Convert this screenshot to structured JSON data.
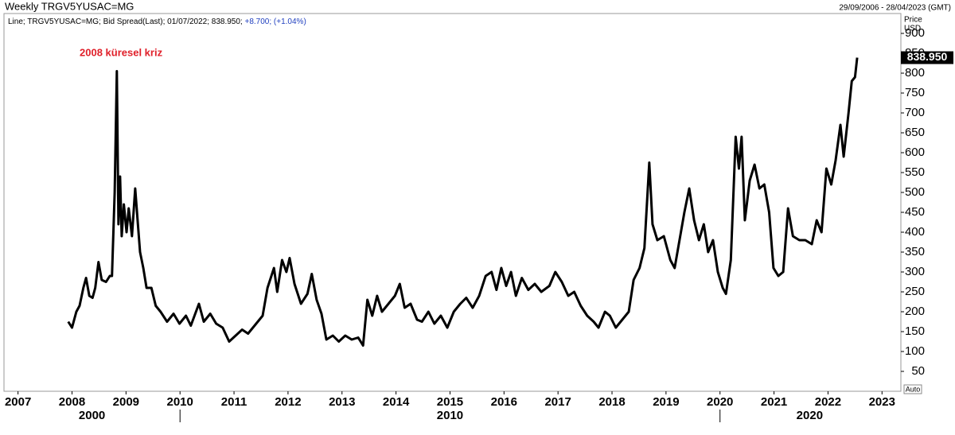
{
  "chart_data": {
    "type": "line",
    "title": "Weekly TRGV5YUSAC=MG",
    "date_range": "29/09/2006 - 28/04/2023 (GMT)",
    "legend_text": "Line; TRGV5YUSAC=MG; Bid Spread(Last); 01/07/2022; 838.950;",
    "legend_change": "+8.700; (+1.04%)",
    "axis_title": "Price",
    "axis_unit": "USD",
    "annotation": "2008 küresel kriz",
    "last_value_label": "838.950",
    "auto_button": "Auto",
    "decade_labels": [
      "2000",
      "2010",
      "2020"
    ],
    "xlim": [
      2006.74,
      2023.32
    ],
    "xticks": [
      2007,
      2008,
      2009,
      2010,
      2011,
      2012,
      2013,
      2014,
      2015,
      2016,
      2017,
      2018,
      2019,
      2020,
      2021,
      2022,
      2023
    ],
    "ylim": [
      0,
      948
    ],
    "yticks": [
      50,
      100,
      150,
      200,
      250,
      300,
      350,
      400,
      450,
      500,
      550,
      600,
      650,
      700,
      750,
      800,
      850,
      900
    ],
    "grid": false,
    "x": [
      2007.93,
      2008.0,
      2008.08,
      2008.14,
      2008.21,
      2008.26,
      2008.32,
      2008.38,
      2008.43,
      2008.49,
      2008.55,
      2008.63,
      2008.7,
      2008.74,
      2008.79,
      2008.83,
      2008.86,
      2008.89,
      2008.92,
      2008.96,
      2009.01,
      2009.05,
      2009.11,
      2009.17,
      2009.22,
      2009.26,
      2009.32,
      2009.38,
      2009.47,
      2009.55,
      2009.64,
      2009.76,
      2009.88,
      2009.99,
      2010.11,
      2010.2,
      2010.35,
      2010.44,
      2010.56,
      2010.67,
      2010.79,
      2010.91,
      2011.03,
      2011.15,
      2011.26,
      2011.38,
      2011.53,
      2011.62,
      2011.74,
      2011.8,
      2011.89,
      2011.97,
      2012.03,
      2012.12,
      2012.24,
      2012.36,
      2012.44,
      2012.53,
      2012.62,
      2012.71,
      2012.83,
      2012.94,
      2013.06,
      2013.18,
      2013.3,
      2013.39,
      2013.47,
      2013.56,
      2013.65,
      2013.74,
      2013.86,
      2013.98,
      2014.07,
      2014.16,
      2014.27,
      2014.39,
      2014.48,
      2014.6,
      2014.71,
      2014.83,
      2014.95,
      2015.07,
      2015.19,
      2015.3,
      2015.42,
      2015.54,
      2015.66,
      2015.77,
      2015.86,
      2015.95,
      2016.04,
      2016.13,
      2016.22,
      2016.33,
      2016.45,
      2016.57,
      2016.69,
      2016.84,
      2016.95,
      2017.07,
      2017.19,
      2017.3,
      2017.42,
      2017.54,
      2017.66,
      2017.75,
      2017.87,
      2017.96,
      2018.07,
      2018.19,
      2018.31,
      2018.4,
      2018.51,
      2018.6,
      2018.69,
      2018.75,
      2018.84,
      2018.96,
      2019.08,
      2019.16,
      2019.25,
      2019.34,
      2019.43,
      2019.52,
      2019.61,
      2019.7,
      2019.78,
      2019.87,
      2019.96,
      2020.05,
      2020.11,
      2020.2,
      2020.29,
      2020.35,
      2020.4,
      2020.46,
      2020.55,
      2020.64,
      2020.73,
      2020.82,
      2020.91,
      2020.99,
      2021.08,
      2021.17,
      2021.26,
      2021.35,
      2021.47,
      2021.58,
      2021.7,
      2021.79,
      2021.88,
      2021.97,
      2022.06,
      2022.14,
      2022.23,
      2022.29,
      2022.38,
      2022.44,
      2022.5,
      2022.54
    ],
    "series": [
      {
        "name": "TRGV5YUSAC=MG",
        "color": "#000000",
        "values": [
          175,
          160,
          200,
          215,
          260,
          285,
          240,
          235,
          260,
          325,
          280,
          275,
          290,
          290,
          500,
          805,
          420,
          540,
          390,
          470,
          400,
          460,
          390,
          510,
          420,
          350,
          310,
          260,
          260,
          215,
          200,
          175,
          195,
          170,
          190,
          165,
          220,
          175,
          195,
          170,
          160,
          125,
          140,
          155,
          145,
          165,
          190,
          260,
          310,
          250,
          330,
          300,
          335,
          270,
          220,
          245,
          295,
          230,
          195,
          130,
          140,
          125,
          140,
          130,
          135,
          115,
          230,
          190,
          240,
          200,
          220,
          240,
          270,
          210,
          220,
          180,
          175,
          200,
          170,
          190,
          160,
          200,
          220,
          235,
          210,
          240,
          290,
          300,
          255,
          310,
          265,
          300,
          240,
          285,
          255,
          270,
          250,
          265,
          300,
          275,
          240,
          250,
          215,
          190,
          175,
          160,
          200,
          190,
          160,
          180,
          200,
          280,
          310,
          360,
          575,
          420,
          380,
          390,
          330,
          310,
          380,
          450,
          510,
          430,
          380,
          420,
          350,
          380,
          300,
          260,
          245,
          330,
          640,
          560,
          640,
          430,
          530,
          570,
          510,
          520,
          450,
          310,
          290,
          300,
          460,
          390,
          380,
          380,
          370,
          430,
          400,
          560,
          520,
          580,
          670,
          590,
          700,
          780,
          790,
          838.95
        ]
      }
    ]
  }
}
